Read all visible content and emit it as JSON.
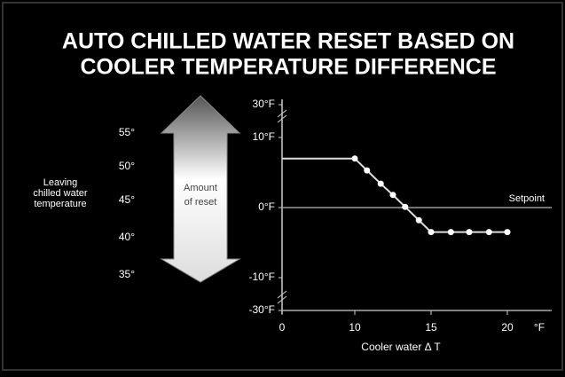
{
  "chart_data": {
    "type": "line",
    "title": [
      "AUTO CHILLED WATER RESET BASED ON",
      "COOLER TEMPERATURE DIFFERENCE"
    ],
    "y_axis_label": [
      "Leaving",
      "chilled water",
      "temperature"
    ],
    "arrow_label": [
      "Amount",
      "of reset"
    ],
    "temperature_labels": [
      "55°",
      "50°",
      "45°",
      "40°",
      "35°"
    ],
    "x_axis_label": "Cooler water Δ T",
    "x_unit": "°F",
    "annotation": "Setpoint",
    "setpoint": 0,
    "x": [
      0,
      10,
      10.8,
      11.7,
      12.5,
      13.3,
      14.2,
      15,
      16.3,
      17.5,
      18.8,
      20
    ],
    "series": [
      {
        "name": "Reset",
        "color": "#dddddd",
        "values": [
          7,
          7,
          5.3,
          3.4,
          1.8,
          0.1,
          -1.8,
          -3.5,
          -3.5,
          -3.5,
          -3.5,
          -3.5
        ]
      }
    ],
    "xlim": [
      0,
      20
    ],
    "xticks": [
      0,
      10,
      15,
      20
    ],
    "ylim": [
      -30,
      30
    ],
    "yticks": [
      {
        "value": 30,
        "label": "30°F"
      },
      {
        "value": 10,
        "label": "10°F"
      },
      {
        "value": 0,
        "label": "0°F"
      },
      {
        "value": -10,
        "label": "-10°F"
      },
      {
        "value": -30,
        "label": "-30°F"
      }
    ]
  }
}
